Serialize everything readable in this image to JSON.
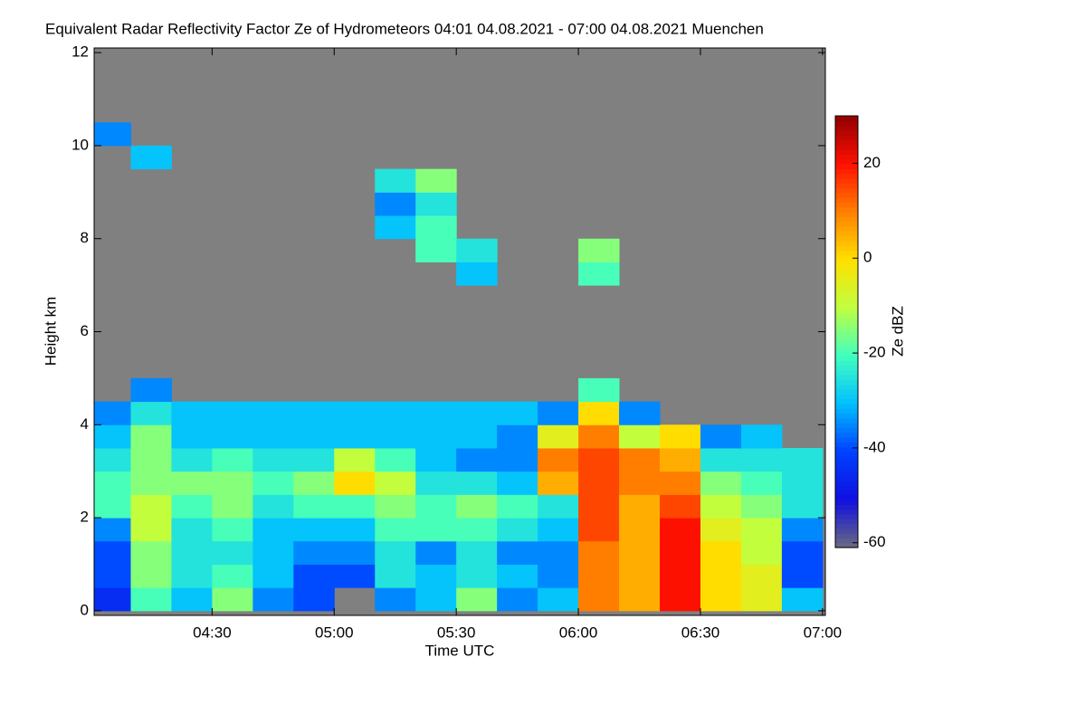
{
  "chart_data": {
    "type": "heatmap",
    "title": "Equivalent Radar Reflectivity Factor Ze of Hydrometeors   04:01 04.08.2021 - 07:00 04.08.2021 Muenchen",
    "x_label": "Time UTC",
    "y_label": "Height km",
    "colorbar_label": "Ze dBZ",
    "xlim": [
      "04:01",
      "07:00"
    ],
    "xticks": [
      "04:30",
      "05:00",
      "05:30",
      "06:00",
      "06:30",
      "07:00"
    ],
    "ylim": [
      -0.1,
      12.1
    ],
    "yticks": [
      0,
      2,
      4,
      6,
      8,
      10,
      12
    ],
    "clim": [
      -61,
      30
    ],
    "cticks": [
      -60,
      -40,
      -20,
      0,
      20
    ],
    "background": "#808080",
    "colormap": [
      "#6a6a80",
      "#1010e0",
      "#0040ff",
      "#00c0ff",
      "#40ffc0",
      "#c0ff40",
      "#ffe000",
      "#ff8000",
      "#ff1000",
      "#900000"
    ],
    "x_bins": [
      "04:00",
      "04:10",
      "04:20",
      "04:30",
      "04:40",
      "04:50",
      "05:00",
      "05:10",
      "05:20",
      "05:30",
      "05:40",
      "05:50",
      "06:00",
      "06:10",
      "06:20",
      "06:30",
      "06:40",
      "06:50",
      "07:00"
    ],
    "y_bins": [
      0,
      0.5,
      1,
      1.5,
      2,
      2.5,
      3,
      3.5,
      4,
      4.5,
      5,
      5.5,
      6,
      6.5,
      7,
      7.5,
      8,
      8.5,
      9,
      9.5,
      10,
      10.5,
      11,
      11.5,
      12
    ],
    "z": [
      [
        -45,
        -20,
        -30,
        -15,
        -35,
        -40,
        null,
        -35,
        -30,
        -15,
        -35,
        -30,
        10,
        5,
        20,
        0,
        -5,
        -30
      ],
      [
        -40,
        -15,
        -25,
        -20,
        -30,
        -40,
        -40,
        -25,
        -30,
        -25,
        -30,
        -35,
        10,
        5,
        20,
        0,
        -5,
        -40
      ],
      [
        -40,
        -15,
        -25,
        -25,
        -30,
        -35,
        -35,
        -25,
        -35,
        -25,
        -35,
        -35,
        10,
        5,
        20,
        0,
        -10,
        -40
      ],
      [
        -35,
        -10,
        -25,
        -20,
        -30,
        -30,
        -30,
        -20,
        -20,
        -20,
        -25,
        -30,
        15,
        5,
        20,
        -5,
        -10,
        -35
      ],
      [
        -20,
        -10,
        -20,
        -15,
        -25,
        -20,
        -20,
        -15,
        -20,
        -15,
        -20,
        -25,
        15,
        5,
        15,
        -10,
        -15,
        -25
      ],
      [
        -20,
        -15,
        -15,
        -15,
        -20,
        -15,
        0,
        -10,
        -25,
        -25,
        -30,
        5,
        15,
        10,
        10,
        -15,
        -20,
        -25
      ],
      [
        -25,
        -15,
        -25,
        -20,
        -25,
        -25,
        -10,
        -20,
        -30,
        -35,
        -35,
        10,
        15,
        10,
        5,
        -25,
        -25,
        -25
      ],
      [
        -30,
        -15,
        -30,
        -30,
        -30,
        -30,
        -30,
        -30,
        -30,
        -30,
        -35,
        -5,
        10,
        -10,
        0,
        -35,
        -30,
        null
      ],
      [
        -35,
        -25,
        -30,
        -30,
        -30,
        -30,
        -30,
        -30,
        -30,
        -30,
        -30,
        -35,
        0,
        -35,
        null,
        null,
        null,
        null
      ],
      [
        null,
        -35,
        null,
        null,
        null,
        null,
        null,
        null,
        null,
        null,
        null,
        null,
        -20,
        null,
        null,
        null,
        null,
        null
      ],
      [
        null,
        null,
        null,
        null,
        null,
        null,
        null,
        null,
        null,
        null,
        null,
        null,
        null,
        null,
        null,
        null,
        null,
        null
      ],
      [
        null,
        null,
        null,
        null,
        null,
        null,
        null,
        null,
        null,
        null,
        null,
        null,
        null,
        null,
        null,
        null,
        null,
        null
      ],
      [
        null,
        null,
        null,
        null,
        null,
        null,
        null,
        null,
        null,
        null,
        null,
        null,
        null,
        null,
        null,
        null,
        null,
        null
      ],
      [
        null,
        null,
        null,
        null,
        null,
        null,
        null,
        null,
        null,
        null,
        null,
        null,
        null,
        null,
        null,
        null,
        null,
        null
      ],
      [
        null,
        null,
        null,
        null,
        null,
        null,
        null,
        null,
        null,
        -30,
        null,
        null,
        -20,
        null,
        null,
        null,
        null,
        null
      ],
      [
        null,
        null,
        null,
        null,
        null,
        null,
        null,
        null,
        -20,
        -25,
        null,
        null,
        -15,
        null,
        null,
        null,
        null,
        null
      ],
      [
        null,
        null,
        null,
        null,
        null,
        null,
        null,
        -30,
        -20,
        null,
        null,
        null,
        null,
        null,
        null,
        null,
        null,
        null
      ],
      [
        null,
        null,
        null,
        null,
        null,
        null,
        null,
        -35,
        -25,
        null,
        null,
        null,
        null,
        null,
        null,
        null,
        null,
        null
      ],
      [
        null,
        null,
        null,
        null,
        null,
        null,
        null,
        -25,
        -15,
        null,
        null,
        null,
        null,
        null,
        null,
        null,
        null,
        null
      ],
      [
        null,
        -30,
        null,
        null,
        null,
        null,
        null,
        null,
        null,
        null,
        null,
        null,
        null,
        null,
        null,
        null,
        null,
        null
      ],
      [
        -35,
        null,
        null,
        null,
        null,
        null,
        null,
        null,
        null,
        null,
        null,
        null,
        null,
        null,
        null,
        null,
        null,
        null
      ],
      [
        null,
        null,
        null,
        null,
        null,
        null,
        null,
        null,
        null,
        null,
        null,
        null,
        null,
        null,
        null,
        null,
        null,
        null
      ],
      [
        null,
        null,
        null,
        null,
        null,
        null,
        null,
        null,
        null,
        null,
        null,
        null,
        null,
        null,
        null,
        null,
        null,
        null
      ],
      [
        null,
        null,
        null,
        null,
        null,
        null,
        null,
        null,
        null,
        null,
        null,
        null,
        null,
        null,
        null,
        null,
        null,
        null
      ]
    ]
  }
}
